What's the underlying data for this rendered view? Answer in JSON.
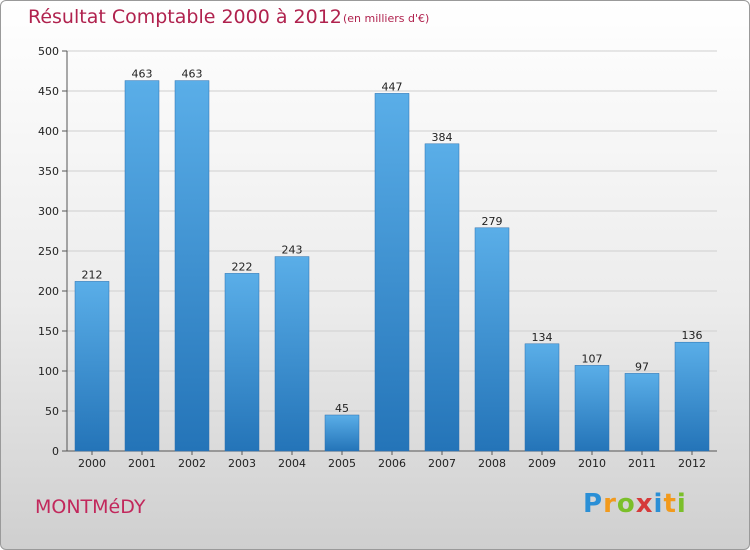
{
  "header": {
    "title": "Résultat Comptable 2000 à 2012",
    "subtitle": "(en milliers d'€)"
  },
  "footer": {
    "town": "MONTMéDY"
  },
  "logo": {
    "letters": [
      "P",
      "r",
      "o",
      "x",
      "i",
      "t",
      "i"
    ],
    "colors": [
      "#2a8fd6",
      "#f29a1c",
      "#7bbf2a",
      "#d63a3a",
      "#2a8fd6",
      "#f29a1c",
      "#7bbf2a"
    ]
  },
  "chart_data": {
    "type": "bar",
    "categories": [
      "2000",
      "2001",
      "2002",
      "2003",
      "2004",
      "2005",
      "2006",
      "2007",
      "2008",
      "2009",
      "2010",
      "2011",
      "2012"
    ],
    "values": [
      212,
      463,
      463,
      222,
      243,
      45,
      447,
      384,
      279,
      134,
      107,
      97,
      136
    ],
    "ylim": [
      0,
      500
    ],
    "yticks": [
      0,
      50,
      100,
      150,
      200,
      250,
      300,
      350,
      400,
      450,
      500
    ],
    "grid": true,
    "bar_color": "#3d8fd6"
  }
}
